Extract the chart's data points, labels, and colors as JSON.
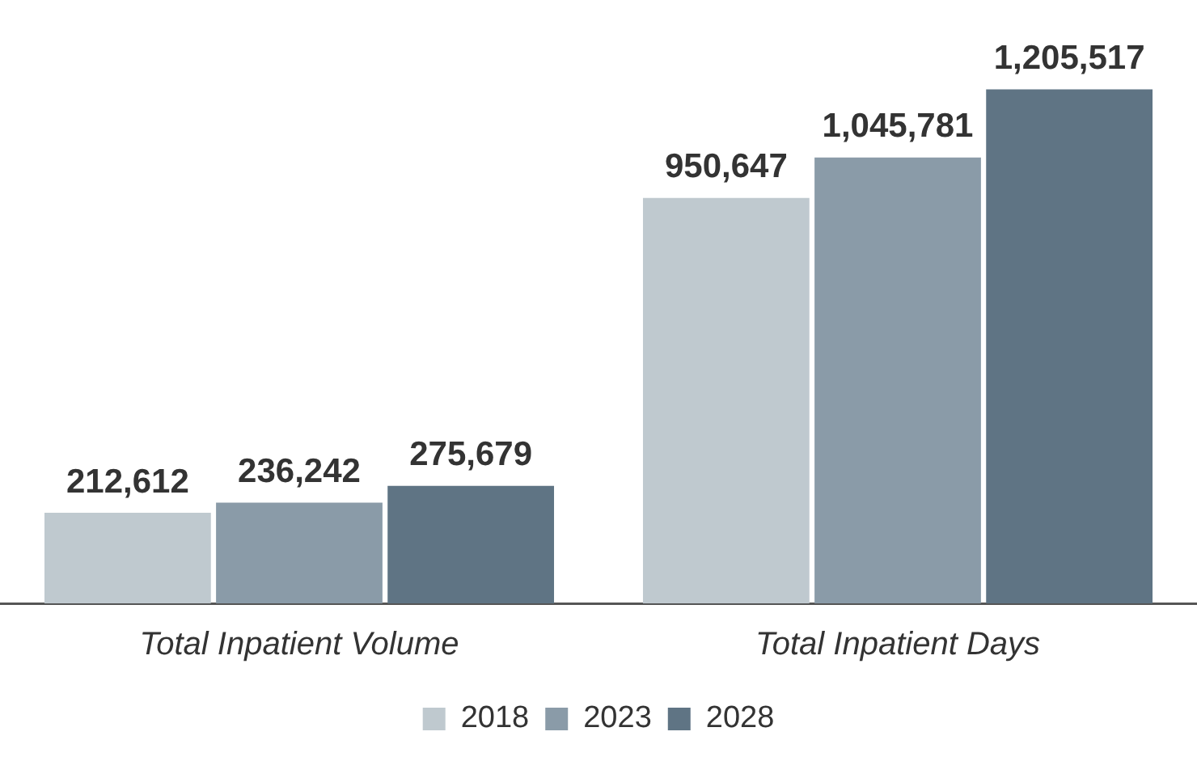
{
  "chart_data": {
    "type": "bar",
    "categories": [
      "Total Inpatient Volume",
      "Total Inpatient Days"
    ],
    "series": [
      {
        "name": "2018",
        "color": "#bfc9cf",
        "values": [
          212612,
          950647
        ],
        "value_labels": [
          "212,612",
          "950,647"
        ]
      },
      {
        "name": "2023",
        "color": "#8a9ba8",
        "values": [
          236242,
          1045781
        ],
        "value_labels": [
          "236,242",
          "1,045,781"
        ]
      },
      {
        "name": "2028",
        "color": "#5f7484",
        "values": [
          275679,
          1205517
        ],
        "value_labels": [
          "275,679",
          "1,205,517"
        ]
      }
    ],
    "data_labels": true,
    "grid": false,
    "legend": "bottom",
    "tick_labels": "x"
  }
}
